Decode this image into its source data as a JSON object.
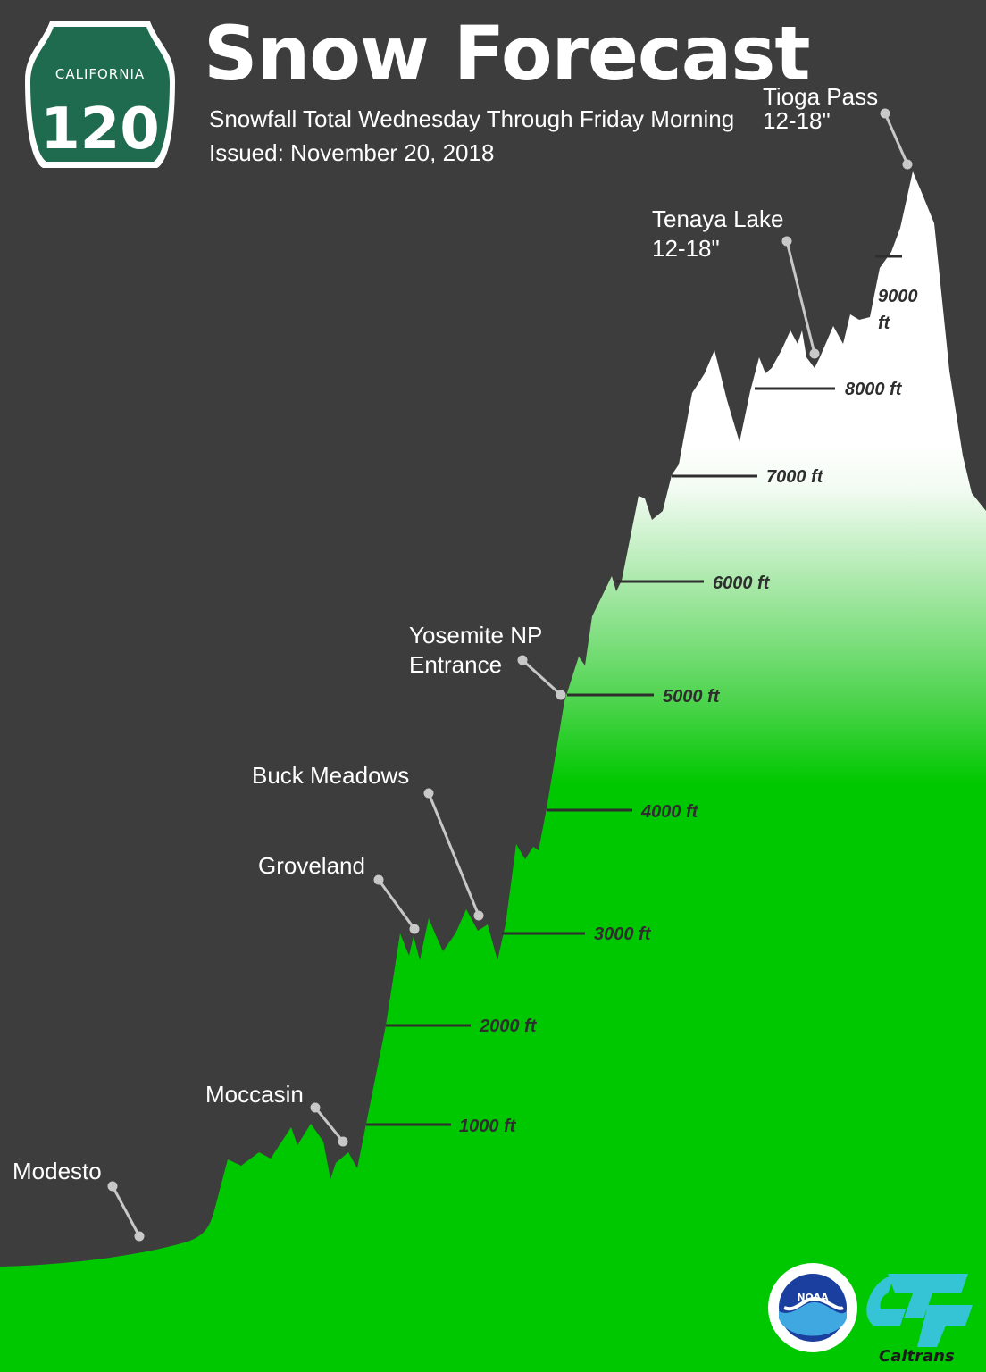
{
  "header": {
    "title": "Snow Forecast",
    "subtitle": "Snowfall Total Wednesday Through Friday Morning",
    "issued": "Issued: November 20, 2018"
  },
  "route_sign": {
    "state": "CALIFORNIA",
    "number": "120",
    "color": "#1f6b4f"
  },
  "places": {
    "tioga": {
      "name": "Tioga Pass",
      "snow": "12-18\""
    },
    "tenaya": {
      "name": "Tenaya Lake",
      "snow": "12-18\""
    },
    "yosemite": {
      "line1": "Yosemite NP",
      "line2": "Entrance"
    },
    "buck": {
      "name": "Buck Meadows"
    },
    "groveland": {
      "name": "Groveland"
    },
    "moccasin": {
      "name": "Moccasin"
    },
    "modesto": {
      "name": "Modesto"
    }
  },
  "elevations": {
    "e9000a": "9000",
    "e9000b": "ft",
    "e8000": "8000 ft",
    "e7000": "7000 ft",
    "e6000": "6000 ft",
    "e5000": "5000 ft",
    "e4000": "4000 ft",
    "e3000": "3000 ft",
    "e2000": "2000 ft",
    "e1000": "1000 ft"
  },
  "colors": {
    "background": "#3d3d3d",
    "terrain_green": "#00c800",
    "snow": "#ffffff"
  },
  "logos": {
    "noaa": "NOAA",
    "caltrans": "Caltrans"
  }
}
